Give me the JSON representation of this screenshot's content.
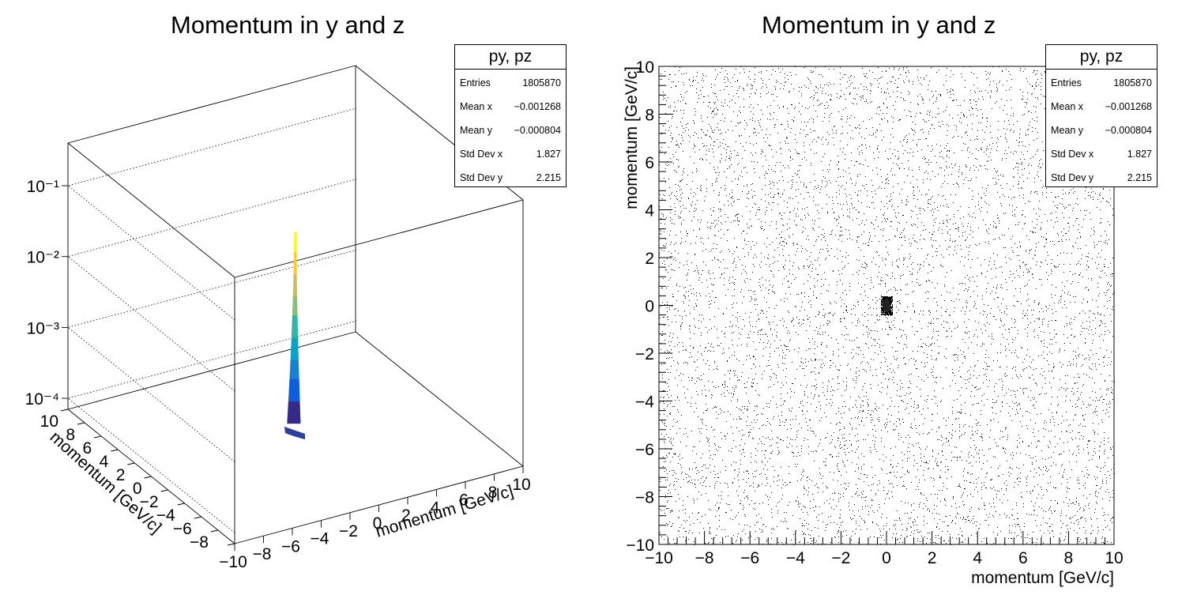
{
  "left_pad": {
    "title": "Momentum in y and z",
    "stats": {
      "name": "py, pz",
      "rows": [
        {
          "key": "Entries",
          "value": "1805870"
        },
        {
          "key": "Mean x",
          "value": "−0.001268"
        },
        {
          "key": "Mean y",
          "value": "−0.000804"
        },
        {
          "key": "Std Dev x",
          "value": "1.827"
        },
        {
          "key": "Std Dev y",
          "value": "2.215"
        }
      ]
    },
    "x_axis_title": "momentum [GeV/c]",
    "y_axis_title": "momentum [GeV/c]",
    "z_tick_labels": [
      "10⁻⁴",
      "10⁻³",
      "10⁻²",
      "10⁻¹"
    ]
  },
  "right_pad": {
    "title": "Momentum in y and z",
    "stats": {
      "name": "py, pz",
      "rows": [
        {
          "key": "Entries",
          "value": "1805870"
        },
        {
          "key": "Mean x",
          "value": "−0.001268"
        },
        {
          "key": "Mean y",
          "value": "−0.000804"
        },
        {
          "key": "Std Dev x",
          "value": "1.827"
        },
        {
          "key": "Std Dev y",
          "value": "2.215"
        }
      ]
    },
    "x_axis_title": "momentum [GeV/c]",
    "y_axis_title": "momentum [GeV/c]"
  },
  "chart_data": [
    {
      "type": "surface",
      "title": "Momentum in y and z",
      "xlabel": "momentum [GeV/c]",
      "ylabel": "momentum [GeV/c]",
      "zscale": "log",
      "xlim": [
        -10,
        10
      ],
      "ylim": [
        -10,
        10
      ],
      "zlim": [
        7e-05,
        0.4
      ],
      "x_ticks": [
        -10,
        -8,
        -6,
        -4,
        -2,
        0,
        2,
        4,
        6,
        8,
        10
      ],
      "y_ticks": [
        -10,
        -8,
        -6,
        -4,
        -2,
        0,
        2,
        4,
        6,
        8,
        10
      ],
      "z_ticks": [
        0.0001,
        0.001,
        0.01,
        0.1
      ],
      "peak": {
        "x": 0,
        "y": 0,
        "z": 0.055
      },
      "base_level": 7e-05,
      "colormap": [
        "#352a87",
        "#0f5cdd",
        "#1481d6",
        "#06a4ca",
        "#2eb7a4",
        "#87bf77",
        "#d1bb59",
        "#fec832",
        "#f9fb0e"
      ]
    },
    {
      "type": "scatter",
      "title": "Momentum in y and z",
      "xlabel": "momentum [GeV/c]",
      "ylabel": "momentum [GeV/c]",
      "xlim": [
        -10,
        10
      ],
      "ylim": [
        -10,
        10
      ],
      "x_ticks": [
        -10,
        -8,
        -6,
        -4,
        -2,
        0,
        2,
        4,
        6,
        8,
        10
      ],
      "y_ticks": [
        -10,
        -8,
        -6,
        -4,
        -2,
        0,
        2,
        4,
        6,
        8,
        10
      ],
      "distribution": {
        "entries": 1805870,
        "mean_x": -0.001268,
        "mean_y": -0.000804,
        "std_x": 1.827,
        "std_y": 2.215,
        "background": "uniform over [-10, 10] x [-10, 10]",
        "core_center": [
          0,
          0
        ],
        "core_half_width_x": 0.25,
        "core_half_width_y": 0.4
      },
      "grid": false
    }
  ]
}
